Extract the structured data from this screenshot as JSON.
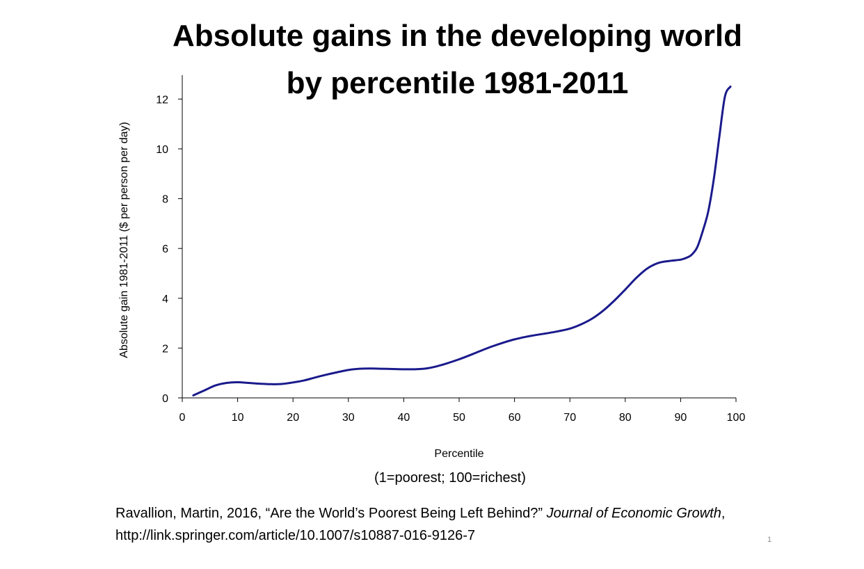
{
  "slide": {
    "title_line1": "Absolute gains in the developing world",
    "title_line2": "by percentile 1981-2011",
    "note": "(1=poorest; 100=richest)",
    "citation": {
      "part1": "Ravallion, Martin, 2016,  “Are the World’s Poorest Being Left Behind?”",
      "journal": "Journal of Economic Growth",
      "part2": ",  http://link.springer.com/article/10.1007/s10887-016-9126-7"
    },
    "page_number": "1"
  },
  "colors": {
    "line": "#1a1a8c",
    "axis": "#000000"
  },
  "chart_data": {
    "type": "line",
    "title": "",
    "xlabel": "Percentile",
    "ylabel": "Absolute gain 1981-2011 ($ per person per day)",
    "xlim": [
      0,
      100
    ],
    "ylim": [
      0,
      13
    ],
    "xticks": [
      "0",
      "10",
      "20",
      "30",
      "40",
      "50",
      "60",
      "70",
      "80",
      "90",
      "100"
    ],
    "yticks": [
      "0",
      "2",
      "4",
      "6",
      "8",
      "10",
      "12"
    ],
    "grid": false,
    "legend": "none",
    "series": [
      {
        "x": [
          2,
          4,
          6,
          8,
          10,
          12,
          14,
          16,
          18,
          20,
          22,
          24,
          26,
          28,
          30,
          32,
          34,
          36,
          38,
          40,
          42,
          44,
          46,
          48,
          50,
          52,
          54,
          56,
          58,
          60,
          62,
          64,
          66,
          68,
          70,
          72,
          74,
          76,
          78,
          80,
          82,
          84,
          86,
          88,
          90,
          91,
          92,
          93,
          94,
          95,
          96,
          97,
          98,
          99
        ],
        "y": [
          0.1,
          0.3,
          0.5,
          0.6,
          0.63,
          0.6,
          0.57,
          0.55,
          0.56,
          0.62,
          0.7,
          0.82,
          0.93,
          1.03,
          1.12,
          1.17,
          1.18,
          1.17,
          1.16,
          1.15,
          1.15,
          1.18,
          1.27,
          1.4,
          1.55,
          1.72,
          1.9,
          2.07,
          2.22,
          2.35,
          2.45,
          2.53,
          2.6,
          2.68,
          2.78,
          2.95,
          3.18,
          3.5,
          3.9,
          4.35,
          4.82,
          5.2,
          5.42,
          5.5,
          5.55,
          5.62,
          5.75,
          6.05,
          6.7,
          7.5,
          8.8,
          10.5,
          12.1,
          12.5
        ]
      }
    ]
  }
}
